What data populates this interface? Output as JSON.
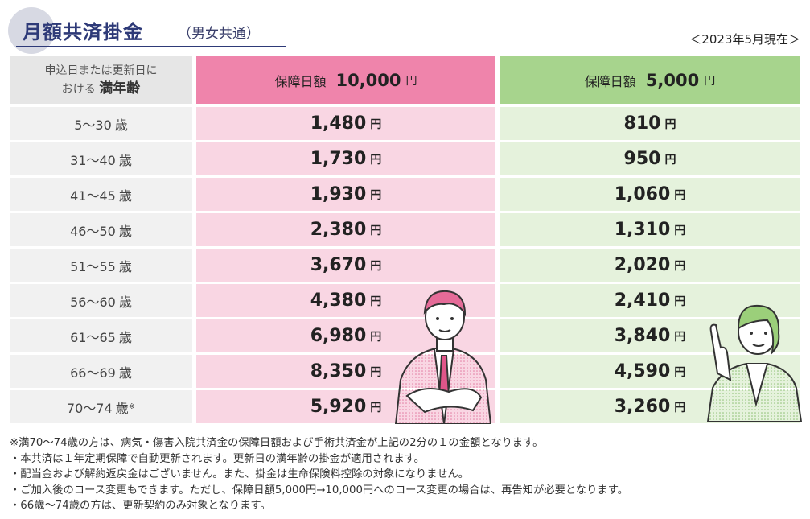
{
  "header": {
    "title": "月額共済掛金",
    "subtitle": "（男女共通）",
    "as_of": "＜2023年5月現在＞"
  },
  "table": {
    "age_header_line1": "申込日または更新日に",
    "age_header_line2a": "おける",
    "age_header_line2b": "満年齢",
    "col1": {
      "label": "保障日額",
      "amount": "10,000",
      "unit": "円"
    },
    "col2": {
      "label": "保障日額",
      "amount": "5,000",
      "unit": "円"
    },
    "yen": "円",
    "age_unit": "歳",
    "rows": [
      {
        "age": "5〜30",
        "mark": "",
        "v1": "1,480",
        "v2": "810"
      },
      {
        "age": "31〜40",
        "mark": "",
        "v1": "1,730",
        "v2": "950"
      },
      {
        "age": "41〜45",
        "mark": "",
        "v1": "1,930",
        "v2": "1,060"
      },
      {
        "age": "46〜50",
        "mark": "",
        "v1": "2,380",
        "v2": "1,310"
      },
      {
        "age": "51〜55",
        "mark": "",
        "v1": "3,670",
        "v2": "2,020"
      },
      {
        "age": "56〜60",
        "mark": "",
        "v1": "4,380",
        "v2": "2,410"
      },
      {
        "age": "61〜65",
        "mark": "",
        "v1": "6,980",
        "v2": "3,840"
      },
      {
        "age": "66〜69",
        "mark": "",
        "v1": "8,350",
        "v2": "4,590"
      },
      {
        "age": "70〜74",
        "mark": "※",
        "v1": "5,920",
        "v2": "3,260"
      }
    ]
  },
  "notes": [
    "※満70〜74歳の方は、病気・傷害入院共済金の保障日額および手術共済金が上記の2分の１の金額となります。",
    "・本共済は１年定期保障で自動更新されます。更新日の満年齢の掛金が適用されます。",
    "・配当金および解約返戻金はございません。また、掛金は生命保険料控除の対象になりません。",
    "・ご加入後のコース変更もできます。ただし、保障日額5,000円→10,000円へのコース変更の場合は、再告知が必要となります。",
    "・66歳〜74歳の方は、更新契約のみ対象となります。"
  ],
  "colors": {
    "title": "#2e3a78",
    "pink_header": "#ef84ab",
    "pink_cell": "#f9d6e3",
    "green_header": "#a7d48d",
    "green_cell": "#e5f2dc",
    "age_cell": "#f1f1f1"
  },
  "illustrations": [
    "businessman-arms-crossed",
    "woman-pointing-up"
  ]
}
